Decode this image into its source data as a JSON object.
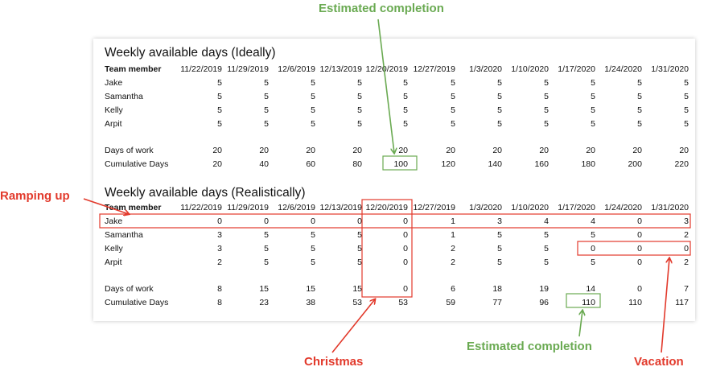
{
  "ideal": {
    "title": "Weekly available days (Ideally)",
    "header_label": "Team member",
    "dates": [
      "11/22/2019",
      "11/29/2019",
      "12/6/2019",
      "12/13/2019",
      "12/20/2019",
      "12/27/2019",
      "1/3/2020",
      "1/10/2020",
      "1/17/2020",
      "1/24/2020",
      "1/31/2020"
    ],
    "members": [
      {
        "name": "Jake",
        "values": [
          5,
          5,
          5,
          5,
          5,
          5,
          5,
          5,
          5,
          5,
          5
        ]
      },
      {
        "name": "Samantha",
        "values": [
          5,
          5,
          5,
          5,
          5,
          5,
          5,
          5,
          5,
          5,
          5
        ]
      },
      {
        "name": "Kelly",
        "values": [
          5,
          5,
          5,
          5,
          5,
          5,
          5,
          5,
          5,
          5,
          5
        ]
      },
      {
        "name": "Arpit",
        "values": [
          5,
          5,
          5,
          5,
          5,
          5,
          5,
          5,
          5,
          5,
          5
        ]
      }
    ],
    "totals": [
      {
        "name": "Days of work",
        "values": [
          20,
          20,
          20,
          20,
          20,
          20,
          20,
          20,
          20,
          20,
          20
        ]
      },
      {
        "name": "Cumulative Days",
        "values": [
          20,
          40,
          60,
          80,
          100,
          120,
          140,
          160,
          180,
          200,
          220
        ]
      }
    ]
  },
  "real": {
    "title": "Weekly available days (Realistically)",
    "header_label": "Team member",
    "dates": [
      "11/22/2019",
      "11/29/2019",
      "12/6/2019",
      "12/13/2019",
      "12/20/2019",
      "12/27/2019",
      "1/3/2020",
      "1/10/2020",
      "1/17/2020",
      "1/24/2020",
      "1/31/2020"
    ],
    "members": [
      {
        "name": "Jake",
        "values": [
          0,
          0,
          0,
          0,
          0,
          1,
          3,
          4,
          4,
          0,
          3
        ]
      },
      {
        "name": "Samantha",
        "values": [
          3,
          5,
          5,
          5,
          0,
          1,
          5,
          5,
          5,
          0,
          2
        ]
      },
      {
        "name": "Kelly",
        "values": [
          3,
          5,
          5,
          5,
          0,
          2,
          5,
          5,
          0,
          0,
          0
        ]
      },
      {
        "name": "Arpit",
        "values": [
          2,
          5,
          5,
          5,
          0,
          2,
          5,
          5,
          5,
          0,
          2
        ]
      }
    ],
    "totals": [
      {
        "name": "Days of work",
        "values": [
          8,
          15,
          15,
          15,
          0,
          6,
          18,
          19,
          14,
          0,
          7
        ]
      },
      {
        "name": "Cumulative Days",
        "values": [
          8,
          23,
          38,
          53,
          53,
          59,
          77,
          96,
          110,
          110,
          117
        ]
      }
    ]
  },
  "annotations": {
    "top_completion": "Estimated completion",
    "ramping_up": "Ramping up",
    "christmas": "Christmas",
    "bottom_completion": "Estimated completion",
    "vacation": "Vacation"
  },
  "colors": {
    "green": "#6aaa52",
    "red": "#e23a2c"
  }
}
